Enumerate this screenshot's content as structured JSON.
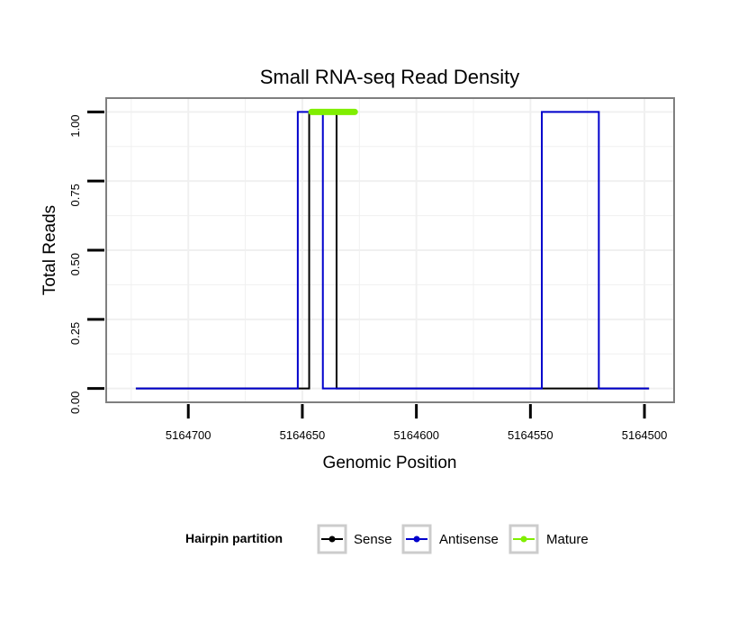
{
  "chart_data": {
    "type": "line",
    "title": "Small RNA-seq Read Density",
    "xlabel": "Genomic Position",
    "ylabel": "Total Reads",
    "x_reversed": true,
    "xlim": [
      5164736,
      5164487
    ],
    "ylim": [
      -0.05,
      1.05
    ],
    "x_ticks": [
      5164700,
      5164650,
      5164600,
      5164550,
      5164500
    ],
    "x_tick_labels": [
      "5164700",
      "5164650",
      "5164600",
      "5164550",
      "5164500"
    ],
    "y_ticks": [
      0,
      0.25,
      0.5,
      0.75,
      1.0
    ],
    "y_tick_labels": [
      "0.00",
      "0.25",
      "0.50",
      "0.75",
      "1.00"
    ],
    "grid": true,
    "legend_title": "Hairpin partition",
    "legend_position": "bottom",
    "series": [
      {
        "name": "Sense",
        "color": "#000000",
        "points": [
          [
            5164723,
            0
          ],
          [
            5164647,
            0
          ],
          [
            5164647,
            1
          ],
          [
            5164635,
            1
          ],
          [
            5164635,
            0
          ],
          [
            5164498,
            0
          ]
        ]
      },
      {
        "name": "Antisense",
        "color": "#0000cc",
        "points": [
          [
            5164723,
            0
          ],
          [
            5164652,
            0
          ],
          [
            5164652,
            1
          ],
          [
            5164641,
            1
          ],
          [
            5164641,
            0
          ],
          [
            5164545,
            0
          ],
          [
            5164545,
            1
          ],
          [
            5164520,
            1
          ],
          [
            5164520,
            0
          ],
          [
            5164498,
            0
          ]
        ]
      },
      {
        "name": "Mature",
        "color": "#80ee00",
        "points": [
          [
            5164646,
            1
          ],
          [
            5164627,
            1
          ]
        ]
      }
    ]
  }
}
